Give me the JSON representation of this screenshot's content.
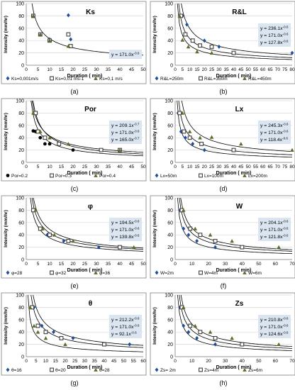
{
  "chart_data": [
    {
      "type": "scatter",
      "title": "Ks",
      "panel_label": "(a)",
      "xlabel": "Duration ( min)",
      "ylabel": "Intensity (mm/hr)",
      "xlim": [
        0,
        50
      ],
      "ylim": [
        0,
        100
      ],
      "xticks": [
        0,
        5,
        10,
        15,
        20,
        25,
        30,
        35,
        40,
        45,
        50
      ],
      "yticks": [
        0,
        20,
        40,
        60,
        80,
        100
      ],
      "legend_position": "bottom",
      "series": [
        {
          "name": "Ks=0,001m/s",
          "marker": "diamond",
          "color": "#1f4e9c",
          "x": [
            3,
            6,
            10,
            18,
            19,
            40
          ],
          "y": [
            80,
            50,
            42,
            81,
            42,
            20
          ]
        },
        {
          "name": "Ks=0,01 ms-1",
          "marker": "square",
          "color": "#404040",
          "x": [
            3,
            6,
            10,
            18,
            19,
            41
          ],
          "y": [
            80,
            50,
            40,
            50,
            31,
            20
          ]
        },
        {
          "name": "Ks=0,1 m/s",
          "marker": "triangle",
          "color": "#5a6e2a",
          "x": [
            3,
            6,
            10,
            18,
            40
          ],
          "y": [
            80,
            50,
            40,
            31,
            20
          ]
        }
      ],
      "fits": [
        {
          "label": "y = 171.0x",
          "exponent": "-0.6",
          "a": 171.0,
          "b": -0.6
        }
      ]
    },
    {
      "type": "scatter",
      "title": "R&L",
      "panel_label": "(b)",
      "xlabel": "Duration ( min)",
      "ylabel": "Intensity (mm/hr)",
      "xlim": [
        0,
        80
      ],
      "ylim": [
        0,
        100
      ],
      "xticks": [
        0,
        5,
        10,
        15,
        20,
        25,
        30,
        35,
        40,
        45,
        50,
        55,
        60,
        65,
        70,
        75,
        80
      ],
      "yticks": [
        0,
        20,
        40,
        60,
        80,
        100
      ],
      "legend_position": "bottom",
      "series": [
        {
          "name": "R&L=250m",
          "marker": "diamond",
          "color": "#1f4e9c",
          "x": [
            5,
            8,
            20,
            30,
            80
          ],
          "y": [
            80,
            66,
            40,
            30,
            20
          ]
        },
        {
          "name": "R&L=350m",
          "marker": "square",
          "color": "#404040",
          "x": [
            4,
            7,
            12,
            17,
            25,
            40
          ],
          "y": [
            80,
            50,
            40,
            32,
            30,
            20
          ]
        },
        {
          "name": "R&L=450m",
          "marker": "triangle",
          "color": "#5a6e2a",
          "x": [
            3,
            5,
            9,
            15,
            25
          ],
          "y": [
            80,
            41,
            30,
            22,
            20
          ]
        }
      ],
      "fits": [
        {
          "label": "y = 236.1x",
          "exponent": "-0.6",
          "a": 236.1,
          "b": -0.6
        },
        {
          "label": "y = 171.0x",
          "exponent": "-0.6",
          "a": 171.0,
          "b": -0.6
        },
        {
          "label": "y = 127.8x",
          "exponent": "-0.6",
          "a": 127.8,
          "b": -0.6
        }
      ]
    },
    {
      "type": "scatter",
      "title": "Por",
      "panel_label": "(c)",
      "xlabel": "Duration ( min)",
      "ylabel": "Intensity (mm/hr)",
      "xlim": [
        0,
        50
      ],
      "ylim": [
        0,
        100
      ],
      "xticks": [
        0,
        5,
        10,
        15,
        20,
        25,
        30,
        35,
        40,
        45,
        50
      ],
      "yticks": [
        0,
        20,
        40,
        60,
        80,
        100
      ],
      "legend_position": "bottom",
      "series": [
        {
          "name": "Por=0.2",
          "marker": "circle",
          "color": "#000000",
          "x": [
            3,
            4,
            6,
            8,
            10,
            20
          ],
          "y": [
            51,
            50,
            40,
            30,
            30,
            20
          ]
        },
        {
          "name": "Por=0.3",
          "marker": "square",
          "color": "#404040",
          "x": [
            4,
            5,
            8,
            14,
            32,
            40
          ],
          "y": [
            80,
            50,
            40,
            30,
            20,
            20
          ]
        },
        {
          "name": "Por=0.4",
          "marker": "triangle",
          "color": "#5a6e2a",
          "x": [
            3,
            6,
            10,
            18,
            40
          ],
          "y": [
            80,
            50,
            40,
            30,
            20
          ]
        }
      ],
      "fits": [
        {
          "label": "y = 209.1x",
          "exponent": "-0.7",
          "a": 209.1,
          "b": -0.7
        },
        {
          "label": "y = 171.0x",
          "exponent": "-0.6",
          "a": 171.0,
          "b": -0.6
        },
        {
          "label": "y = 165.0x",
          "exponent": "-0.7",
          "a": 165.0,
          "b": -0.7
        }
      ]
    },
    {
      "type": "scatter",
      "title": "Lx",
      "panel_label": "(d)",
      "xlabel": "Duration ( min)",
      "ylabel": "Intensity (mm/hr)",
      "xlim": [
        0,
        80
      ],
      "ylim": [
        0,
        100
      ],
      "xticks": [
        0,
        5,
        10,
        15,
        20,
        25,
        30,
        35,
        40,
        45,
        50,
        55,
        60,
        65,
        70,
        75,
        80
      ],
      "yticks": [
        0,
        20,
        40,
        60,
        80,
        100
      ],
      "legend_position": "bottom",
      "series": [
        {
          "name": "Lx=50m",
          "marker": "diamond",
          "color": "#1f4e9c",
          "x": [
            2,
            4,
            7,
            12,
            20
          ],
          "y": [
            80,
            50,
            40,
            30,
            20
          ]
        },
        {
          "name": "Lx=100m",
          "marker": "square",
          "color": "#404040",
          "x": [
            3,
            6,
            10,
            18,
            40
          ],
          "y": [
            80,
            50,
            40,
            30,
            20
          ]
        },
        {
          "name": "Lx=200m",
          "marker": "triangle",
          "color": "#5a6e2a",
          "x": [
            5,
            10,
            17,
            25,
            45,
            80
          ],
          "y": [
            80,
            50,
            40,
            41,
            30,
            20
          ]
        }
      ],
      "fits": [
        {
          "label": "y = 245.3x",
          "exponent": "-0.6",
          "a": 245.3,
          "b": -0.6
        },
        {
          "label": "y = 171.0x",
          "exponent": "-0.6",
          "a": 171.0,
          "b": -0.6
        },
        {
          "label": "y = 118.4x",
          "exponent": "-0.6",
          "a": 118.4,
          "b": -0.6
        }
      ]
    },
    {
      "type": "scatter",
      "title": "φ",
      "panel_label": "(e)",
      "xlabel": "Duration ( min)",
      "ylabel": "Intensity (mm/hr)",
      "xlim": [
        0,
        50
      ],
      "ylim": [
        0,
        100
      ],
      "xticks": [
        0,
        5,
        10,
        15,
        20,
        25,
        30,
        35,
        40,
        45,
        50
      ],
      "yticks": [
        0,
        20,
        40,
        60,
        80,
        100
      ],
      "legend_position": "bottom",
      "series": [
        {
          "name": "φ=28",
          "marker": "diamond",
          "color": "#1f4e9c",
          "x": [
            3,
            6,
            9,
            16,
            31
          ],
          "y": [
            80,
            50,
            40,
            30,
            20
          ]
        },
        {
          "name": "φ=32",
          "marker": "square",
          "color": "#404040",
          "x": [
            3,
            6,
            10,
            18,
            40
          ],
          "y": [
            80,
            50,
            40,
            30,
            20
          ]
        },
        {
          "name": "φ=36",
          "marker": "triangle",
          "color": "#5a6e2a",
          "x": [
            4,
            7,
            12,
            20,
            46
          ],
          "y": [
            80,
            50,
            40,
            30,
            20
          ]
        }
      ],
      "fits": [
        {
          "label": "y = 194.5x",
          "exponent": "-0.6",
          "a": 194.5,
          "b": -0.6
        },
        {
          "label": "y = 171.0x",
          "exponent": "-0.6",
          "a": 171.0,
          "b": -0.6
        },
        {
          "label": "y = 139.8x",
          "exponent": "-0.6",
          "a": 139.8,
          "b": -0.6
        }
      ]
    },
    {
      "type": "scatter",
      "title": "W",
      "panel_label": "(f)",
      "xlabel": "Duration ( min)",
      "ylabel": "Intensity (mm/hr)",
      "xlim": [
        0,
        70
      ],
      "ylim": [
        0,
        100
      ],
      "xticks": [
        0,
        10,
        20,
        30,
        40,
        50,
        60,
        70
      ],
      "yticks": [
        0,
        20,
        40,
        60,
        80,
        100
      ],
      "legend_position": "bottom",
      "series": [
        {
          "name": "W=2m",
          "marker": "diamond",
          "color": "#1f4e9c",
          "x": [
            3,
            5,
            8,
            13,
            24
          ],
          "y": [
            80,
            50,
            40,
            30,
            20
          ]
        },
        {
          "name": "W=4m",
          "marker": "square",
          "color": "#404040",
          "x": [
            4,
            9,
            15,
            24,
            40
          ],
          "y": [
            80,
            50,
            40,
            30,
            20
          ]
        },
        {
          "name": "W=6m",
          "marker": "triangle",
          "color": "#5a6e2a",
          "x": [
            5,
            12,
            21,
            34,
            62
          ],
          "y": [
            80,
            50,
            40,
            30,
            20
          ]
        }
      ],
      "fits": [
        {
          "label": "y = 204.1x",
          "exponent": "-0.6",
          "a": 204.1,
          "b": -0.6
        },
        {
          "label": "y = 171.0x",
          "exponent": "-0.6",
          "a": 171.0,
          "b": -0.6
        },
        {
          "label": "y = 121.8x",
          "exponent": "-0.6",
          "a": 121.8,
          "b": -0.6
        }
      ]
    },
    {
      "type": "scatter",
      "title": "θ",
      "panel_label": "(g)",
      "xlabel": "Duration ( min)",
      "ylabel": "Intensity (mm/hr)",
      "xlim": [
        0,
        60
      ],
      "ylim": [
        0,
        100
      ],
      "xticks": [
        0,
        5,
        10,
        15,
        20,
        25,
        30,
        35,
        40,
        45,
        50,
        55,
        60
      ],
      "yticks": [
        0,
        20,
        40,
        60,
        80,
        100
      ],
      "legend_position": "bottom",
      "series": [
        {
          "name": "θ=16",
          "marker": "diamond",
          "color": "#1f4e9c",
          "x": [
            4,
            8,
            14,
            24,
            53
          ],
          "y": [
            80,
            50,
            40,
            30,
            20
          ]
        },
        {
          "name": "θ=20",
          "marker": "square",
          "color": "#404040",
          "x": [
            3,
            6,
            10,
            18,
            40
          ],
          "y": [
            80,
            50,
            40,
            30,
            20
          ]
        },
        {
          "name": "θ=28",
          "marker": "triangle",
          "color": "#5a6e2a",
          "x": [
            2,
            4,
            6,
            10,
            20
          ],
          "y": [
            80,
            50,
            40,
            30,
            20
          ]
        }
      ],
      "fits": [
        {
          "label": "y = 212.2x",
          "exponent": "-0.6",
          "a": 212.2,
          "b": -0.6
        },
        {
          "label": "y = 171.0x",
          "exponent": "-0.6",
          "a": 171.0,
          "b": -0.6
        },
        {
          "label": "y = 92.1x",
          "exponent": "-0.6",
          "a": 92.1,
          "b": -0.6
        }
      ]
    },
    {
      "type": "scatter",
      "title": "Zs",
      "panel_label": "(h)",
      "xlabel": "Duration ( min)",
      "ylabel": "Intensity (mm/hr)",
      "xlim": [
        0,
        70
      ],
      "ylim": [
        0,
        100
      ],
      "xticks": [
        0,
        10,
        20,
        30,
        40,
        50,
        60,
        70
      ],
      "yticks": [
        0,
        20,
        40,
        60,
        80,
        100
      ],
      "legend_position": "bottom",
      "series": [
        {
          "name": "Zs= 2m",
          "marker": "diamond",
          "color": "#1f4e9c",
          "x": [
            3,
            5,
            8,
            13,
            24
          ],
          "y": [
            80,
            50,
            40,
            30,
            20
          ]
        },
        {
          "name": "Zs=4m",
          "marker": "square",
          "color": "#404040",
          "x": [
            4,
            9,
            15,
            24,
            40
          ],
          "y": [
            80,
            50,
            40,
            30,
            20
          ]
        },
        {
          "name": "Zs=6m",
          "marker": "triangle",
          "color": "#5a6e2a",
          "x": [
            5,
            12,
            21,
            34,
            62
          ],
          "y": [
            80,
            50,
            40,
            30,
            20
          ]
        }
      ],
      "fits": [
        {
          "label": "y = 210.8x",
          "exponent": "-0.6",
          "a": 210.8,
          "b": -0.6
        },
        {
          "label": "y = 171.0x",
          "exponent": "-0.6",
          "a": 171.0,
          "b": -0.6
        },
        {
          "label": "y = 124.6x",
          "exponent": "-0.6",
          "a": 124.6,
          "b": -0.6
        }
      ]
    }
  ],
  "colors": {
    "frame": "#7f7f7f",
    "grid": "#d9d9d9",
    "fit_box": "#dbe5f1",
    "curve": "#000000"
  }
}
